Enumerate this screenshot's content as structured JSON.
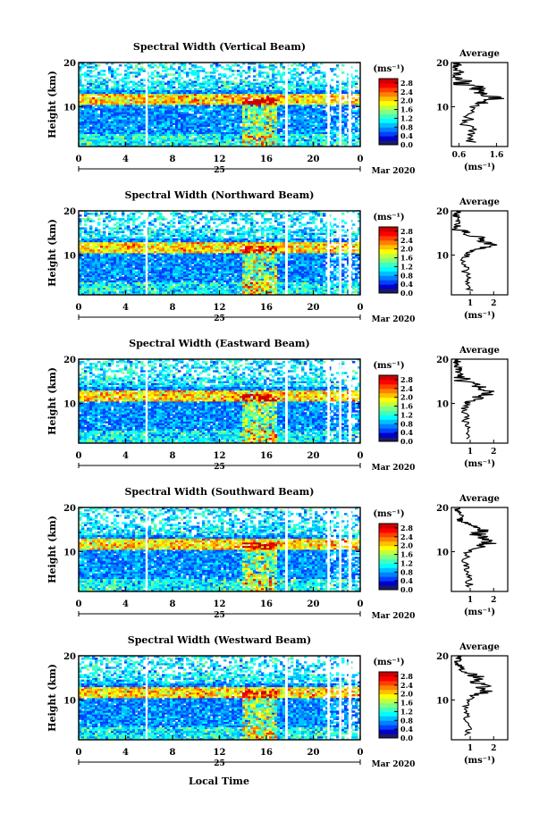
{
  "figure": {
    "xlabel": "Local Time",
    "date_day": "25",
    "date_label": "Mar 2020",
    "ylabel": "Height (km)",
    "colorbar_unit": "(ms⁻¹)",
    "colorbar_ticks": [
      "0.0",
      "0.4",
      "0.8",
      "1.2",
      "1.6",
      "2.0",
      "2.4",
      "2.8"
    ],
    "average_title": "Average",
    "average_xunit": "(ms⁻¹)",
    "colormap": [
      "#1a1a66",
      "#0000cc",
      "#0040ff",
      "#0080ff",
      "#00c0ff",
      "#00ffff",
      "#40ffc0",
      "#80ff80",
      "#c0ff40",
      "#ffff00",
      "#ffc000",
      "#ff8000",
      "#ff4000",
      "#ff0000",
      "#cc0000"
    ]
  },
  "chart_data": [
    {
      "type": "heatmap",
      "title": "Spectral Width (Vertical Beam)",
      "x_ticks": [
        "0",
        "4",
        "8",
        "12",
        "16",
        "20",
        "0"
      ],
      "xlim": [
        0,
        24
      ],
      "y_ticks": [
        "10",
        "20"
      ],
      "ylim": [
        1,
        20
      ],
      "zlim": [
        0,
        3.0
      ],
      "average": {
        "type": "line",
        "x_ticks": [
          "0.6",
          "1.6"
        ],
        "xlim": [
          0.4,
          1.9
        ],
        "heights": [
          2,
          4,
          6,
          8,
          10,
          11,
          12,
          13,
          14,
          15,
          16,
          17,
          18,
          19,
          20
        ],
        "values": [
          0.9,
          1.0,
          0.8,
          0.85,
          0.9,
          1.3,
          1.6,
          1.4,
          1.2,
          0.7,
          0.6,
          0.5,
          0.6,
          0.5,
          0.6
        ]
      }
    },
    {
      "type": "heatmap",
      "title": "Spectral Width (Northward Beam)",
      "x_ticks": [
        "0",
        "4",
        "8",
        "12",
        "16",
        "20",
        "0"
      ],
      "xlim": [
        0,
        24
      ],
      "y_ticks": [
        "10",
        "20"
      ],
      "ylim": [
        1,
        20
      ],
      "zlim": [
        0,
        3.0
      ],
      "average": {
        "type": "line",
        "x_ticks": [
          "1",
          "2"
        ],
        "xlim": [
          0.2,
          2.6
        ],
        "heights": [
          2,
          4,
          6,
          8,
          10,
          11,
          12,
          13,
          14,
          15,
          16,
          17,
          18,
          19,
          20
        ],
        "values": [
          1.0,
          0.9,
          0.8,
          0.75,
          0.8,
          1.1,
          1.9,
          1.5,
          1.3,
          0.7,
          0.5,
          0.4,
          0.5,
          0.4,
          0.5
        ]
      }
    },
    {
      "type": "heatmap",
      "title": "Spectral Width (Eastward Beam)",
      "x_ticks": [
        "0",
        "4",
        "8",
        "12",
        "16",
        "20",
        "0"
      ],
      "xlim": [
        0,
        24
      ],
      "y_ticks": [
        "10",
        "20"
      ],
      "ylim": [
        1,
        20
      ],
      "zlim": [
        0,
        3.0
      ],
      "average": {
        "type": "line",
        "x_ticks": [
          "1",
          "2"
        ],
        "xlim": [
          0.2,
          2.6
        ],
        "heights": [
          2,
          4,
          6,
          8,
          10,
          11,
          12,
          13,
          14,
          15,
          16,
          17,
          18,
          19,
          20
        ],
        "values": [
          0.9,
          1.0,
          0.8,
          0.75,
          0.8,
          1.2,
          1.8,
          1.6,
          1.3,
          0.7,
          0.6,
          0.5,
          0.5,
          0.4,
          0.5
        ]
      }
    },
    {
      "type": "heatmap",
      "title": "Spectral Width (Southward Beam)",
      "x_ticks": [
        "0",
        "4",
        "8",
        "12",
        "16",
        "20",
        "0"
      ],
      "xlim": [
        0,
        24
      ],
      "y_ticks": [
        "10",
        "20"
      ],
      "ylim": [
        1,
        20
      ],
      "zlim": [
        0,
        3.0
      ],
      "average": {
        "type": "line",
        "x_ticks": [
          "1",
          "2"
        ],
        "xlim": [
          0.2,
          2.6
        ],
        "heights": [
          2,
          4,
          6,
          8,
          10,
          11,
          12,
          13,
          14,
          15,
          16,
          17,
          18,
          19,
          20
        ],
        "values": [
          1.0,
          0.9,
          0.8,
          0.8,
          0.9,
          1.3,
          1.9,
          1.6,
          1.3,
          1.5,
          1.0,
          0.6,
          0.6,
          0.5,
          0.5
        ]
      }
    },
    {
      "type": "heatmap",
      "title": "Spectral Width (Westward Beam)",
      "x_ticks": [
        "0",
        "4",
        "8",
        "12",
        "16",
        "20",
        "0"
      ],
      "xlim": [
        0,
        24
      ],
      "y_ticks": [
        "10",
        "20"
      ],
      "ylim": [
        1,
        20
      ],
      "zlim": [
        0,
        3.0
      ],
      "average": {
        "type": "line",
        "x_ticks": [
          "1",
          "2"
        ],
        "xlim": [
          0.2,
          2.6
        ],
        "heights": [
          2,
          4,
          6,
          8,
          10,
          11,
          12,
          13,
          14,
          15,
          16,
          17,
          18,
          19,
          20
        ],
        "values": [
          0.9,
          1.0,
          0.8,
          0.8,
          0.85,
          1.2,
          1.8,
          1.5,
          1.3,
          1.4,
          0.9,
          0.6,
          0.5,
          0.5,
          0.5
        ]
      }
    }
  ]
}
